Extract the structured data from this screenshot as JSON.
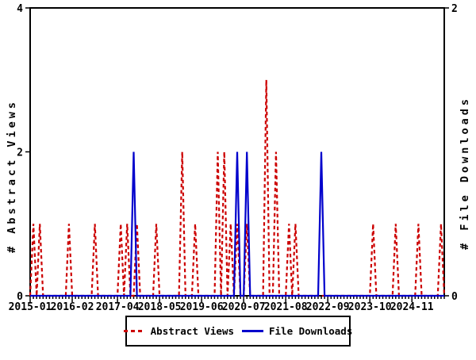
{
  "chart_data": {
    "type": "line",
    "title": "",
    "background": "#ffffff",
    "frame_color": "#000000",
    "x_axis": {
      "start_month": "2015-01",
      "end_month": "2025-09",
      "minor_tick_every_months": 1,
      "major_ticks": [
        {
          "month": "2015-01",
          "label": "2015-01"
        },
        {
          "month": "2016-02",
          "label": "2016-02"
        },
        {
          "month": "2017-04",
          "label": "2017-04"
        },
        {
          "month": "2018-05",
          "label": "2018-05"
        },
        {
          "month": "2019-06",
          "label": "2019-06"
        },
        {
          "month": "2020-07",
          "label": "2020-07"
        },
        {
          "month": "2021-08",
          "label": "2021-08"
        },
        {
          "month": "2022-09",
          "label": "2022-09"
        },
        {
          "month": "2023-10",
          "label": "2023-10"
        },
        {
          "month": "2024-11",
          "label": "2024-11"
        }
      ]
    },
    "y_left": {
      "label": "# Abstract Views",
      "min": 0,
      "max": 4,
      "ticks": [
        0,
        2,
        4
      ]
    },
    "y_right": {
      "label": "# File Downloads",
      "min": 0,
      "max": 2,
      "ticks": [
        0,
        2
      ]
    },
    "series": [
      {
        "name": "Abstract Views",
        "axis": "left",
        "color": "#cc0000",
        "style": "dashed",
        "baseline_value": 0,
        "spikes": [
          {
            "month": "2015-02",
            "value": 1
          },
          {
            "month": "2015-04",
            "value": 1
          },
          {
            "month": "2016-01",
            "value": 1
          },
          {
            "month": "2016-09",
            "value": 1
          },
          {
            "month": "2017-05",
            "value": 1
          },
          {
            "month": "2017-07",
            "value": 1
          },
          {
            "month": "2017-10",
            "value": 1
          },
          {
            "month": "2018-04",
            "value": 1
          },
          {
            "month": "2018-12",
            "value": 2
          },
          {
            "month": "2019-04",
            "value": 1
          },
          {
            "month": "2019-11",
            "value": 2
          },
          {
            "month": "2020-01",
            "value": 2
          },
          {
            "month": "2020-03",
            "value": 1
          },
          {
            "month": "2020-05",
            "value": 1
          },
          {
            "month": "2020-08",
            "value": 1
          },
          {
            "month": "2021-02",
            "value": 3
          },
          {
            "month": "2021-05",
            "value": 2
          },
          {
            "month": "2021-09",
            "value": 1
          },
          {
            "month": "2021-11",
            "value": 1
          },
          {
            "month": "2023-11",
            "value": 1
          },
          {
            "month": "2024-06",
            "value": 1
          },
          {
            "month": "2025-01",
            "value": 1
          },
          {
            "month": "2025-08",
            "value": 1
          }
        ]
      },
      {
        "name": "File Downloads",
        "axis": "right",
        "color": "#0000cc",
        "style": "solid",
        "baseline_value": 0,
        "spikes": [
          {
            "month": "2017-09",
            "value": 1
          },
          {
            "month": "2020-05",
            "value": 1
          },
          {
            "month": "2020-08",
            "value": 1
          },
          {
            "month": "2022-07",
            "value": 1
          }
        ]
      }
    ],
    "legend": {
      "position": "bottom-center",
      "entries": [
        "Abstract Views",
        "File Downloads"
      ]
    }
  }
}
